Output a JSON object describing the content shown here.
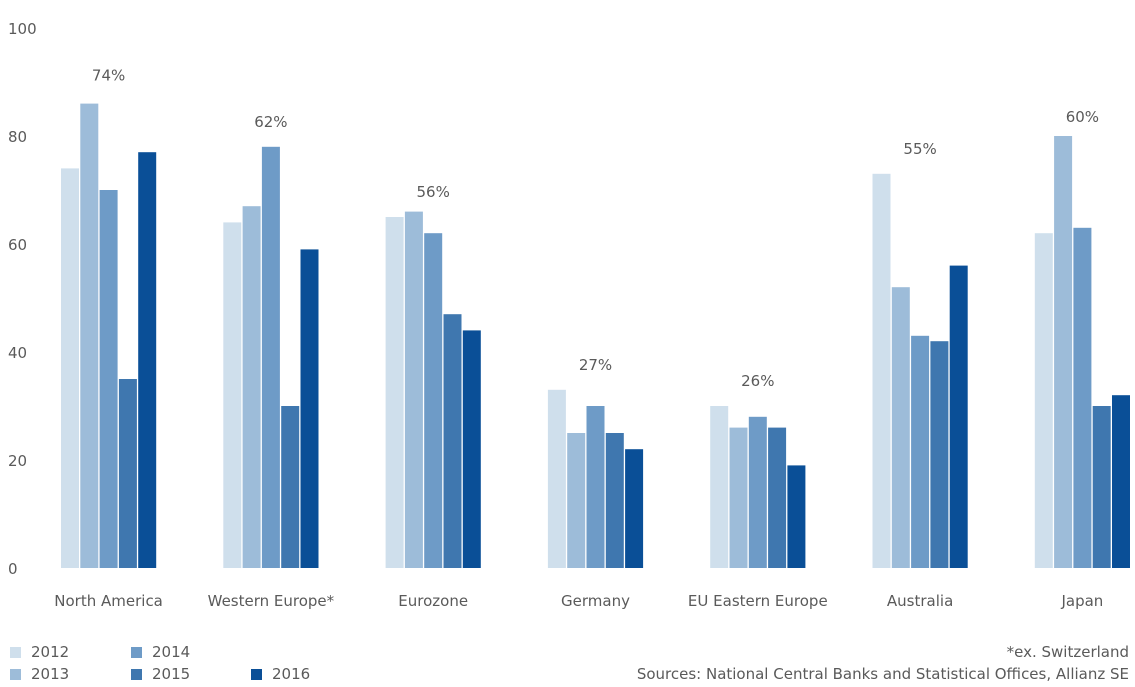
{
  "chart_data": {
    "type": "bar",
    "title": "",
    "xlabel": "",
    "ylabel": "",
    "ylim": [
      0,
      100
    ],
    "yticks": [
      0,
      20,
      40,
      60,
      80,
      100
    ],
    "grid": false,
    "legend_position": "bottom-left",
    "categories": [
      "North America",
      "Western Europe*",
      "Eurozone",
      "Germany",
      "EU Eastern Europe",
      "Australia",
      "Japan"
    ],
    "series": [
      {
        "name": "2012",
        "color": "#cfdfec",
        "values": [
          74,
          64,
          65,
          33,
          30,
          73,
          62
        ]
      },
      {
        "name": "2013",
        "color": "#9dbcd9",
        "values": [
          86,
          67,
          66,
          25,
          26,
          52,
          80
        ]
      },
      {
        "name": "2014",
        "color": "#6e9bc7",
        "values": [
          70,
          78,
          62,
          30,
          28,
          43,
          63
        ]
      },
      {
        "name": "2015",
        "color": "#3f77af",
        "values": [
          35,
          30,
          47,
          25,
          26,
          42,
          30
        ]
      },
      {
        "name": "2016",
        "color": "#0a4f97",
        "values": [
          77,
          59,
          44,
          22,
          19,
          56,
          32
        ]
      }
    ],
    "annotations": [
      "74%",
      "62%",
      "56%",
      "27%",
      "26%",
      "55%",
      "60%"
    ]
  },
  "footnote": "*ex. Switzerland",
  "sources": "Sources: National Central Banks and Statistical Offices, Allianz SE"
}
